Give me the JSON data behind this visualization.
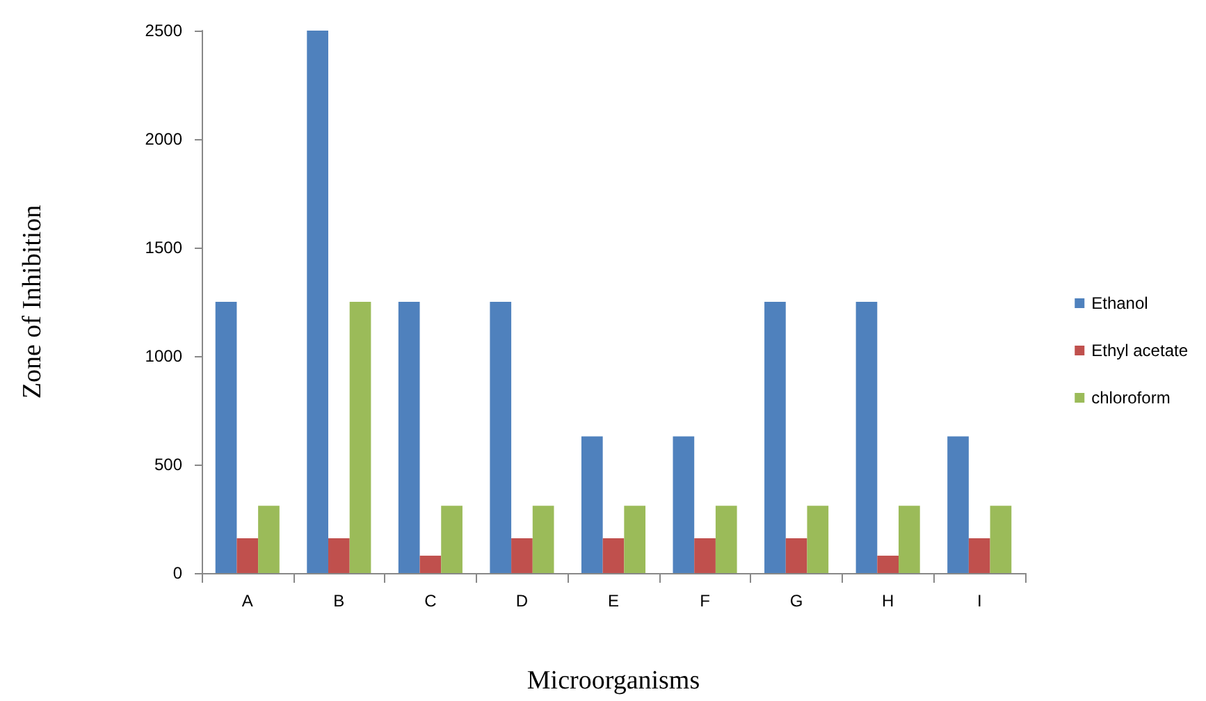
{
  "chart_data": {
    "type": "bar",
    "xlabel": "Microorganisms",
    "ylabel": "Zone of Inhibition",
    "categories": [
      "A",
      "B",
      "C",
      "D",
      "E",
      "F",
      "G",
      "H",
      "I"
    ],
    "series": [
      {
        "name": "Ethanol",
        "color": "#4f81bd",
        "values": [
          1250,
          2500,
          1250,
          1250,
          630,
          630,
          1250,
          1250,
          630
        ]
      },
      {
        "name": "Ethyl acetate",
        "color": "#c0504d",
        "values": [
          160,
          160,
          80,
          160,
          160,
          160,
          160,
          80,
          160
        ]
      },
      {
        "name": "chloroform",
        "color": "#9bbb59",
        "values": [
          310,
          1250,
          310,
          310,
          310,
          310,
          310,
          310,
          310
        ]
      }
    ],
    "ylim": [
      0,
      2500
    ],
    "yticks": [
      0,
      500,
      1000,
      1500,
      2000,
      2500
    ],
    "grid": false,
    "legend": "right"
  }
}
